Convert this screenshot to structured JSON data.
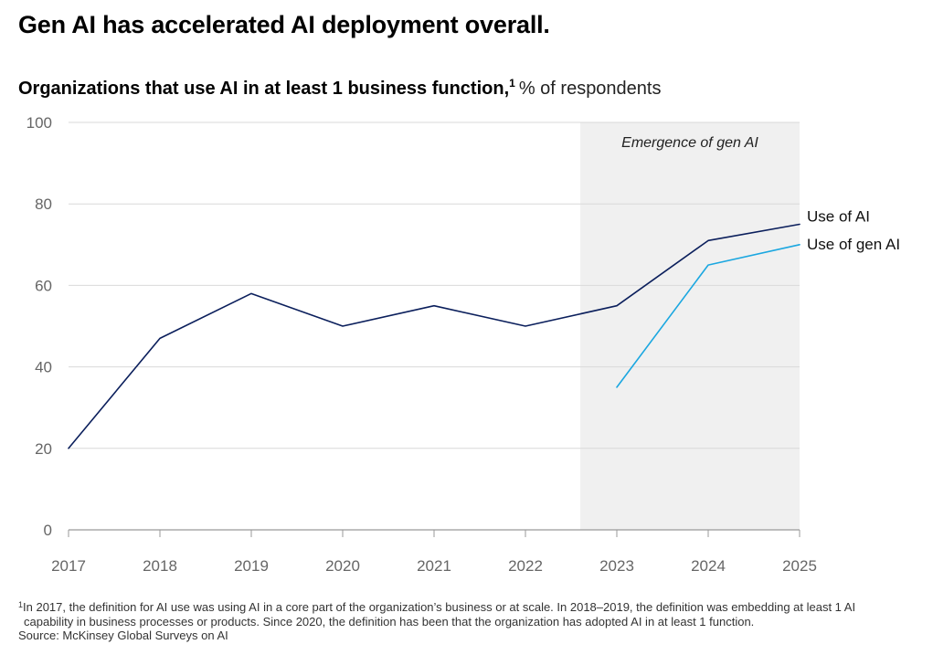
{
  "header": {
    "title": "Gen AI has accelerated AI deployment overall.",
    "subtitle": "Organizations that use AI in at least 1 business function,",
    "subtitle_footnote_mark": "1",
    "subtitle_unit": "% of respondents"
  },
  "chart_data": {
    "type": "line",
    "title": "Gen AI has accelerated AI deployment overall.",
    "subtitle": "Organizations that use AI in at least 1 business function, % of respondents",
    "categories": [
      "2017",
      "2018",
      "2019",
      "2020",
      "2021",
      "2022",
      "2023",
      "2024",
      "2025"
    ],
    "ylim": [
      0,
      100
    ],
    "yticks": [
      0,
      20,
      40,
      60,
      80,
      100
    ],
    "grid": true,
    "shaded_region": {
      "label": "Emergence of gen AI",
      "from": 5.6,
      "to": 8,
      "color": "#f0f0f0"
    },
    "series": [
      {
        "name": "Use of AI",
        "color": "#0b1f5c",
        "values": [
          20,
          47,
          58,
          50,
          55,
          50,
          55,
          71,
          75
        ]
      },
      {
        "name": "Use of gen AI",
        "color": "#1ba7e0",
        "values": [
          null,
          null,
          null,
          null,
          null,
          null,
          35,
          65,
          70
        ]
      }
    ],
    "legend": "inline-end-labels"
  },
  "footnote": {
    "mark": "1",
    "line1": "In 2017, the definition for AI use was using AI in a core part of the organization’s business or at scale. In 2018–2019, the definition was embedding at least 1 AI",
    "line2": "capability in business processes or products. Since 2020, the definition has been that the organization has adopted AI in at least 1 function.",
    "source": "Source: McKinsey Global Surveys on AI"
  }
}
